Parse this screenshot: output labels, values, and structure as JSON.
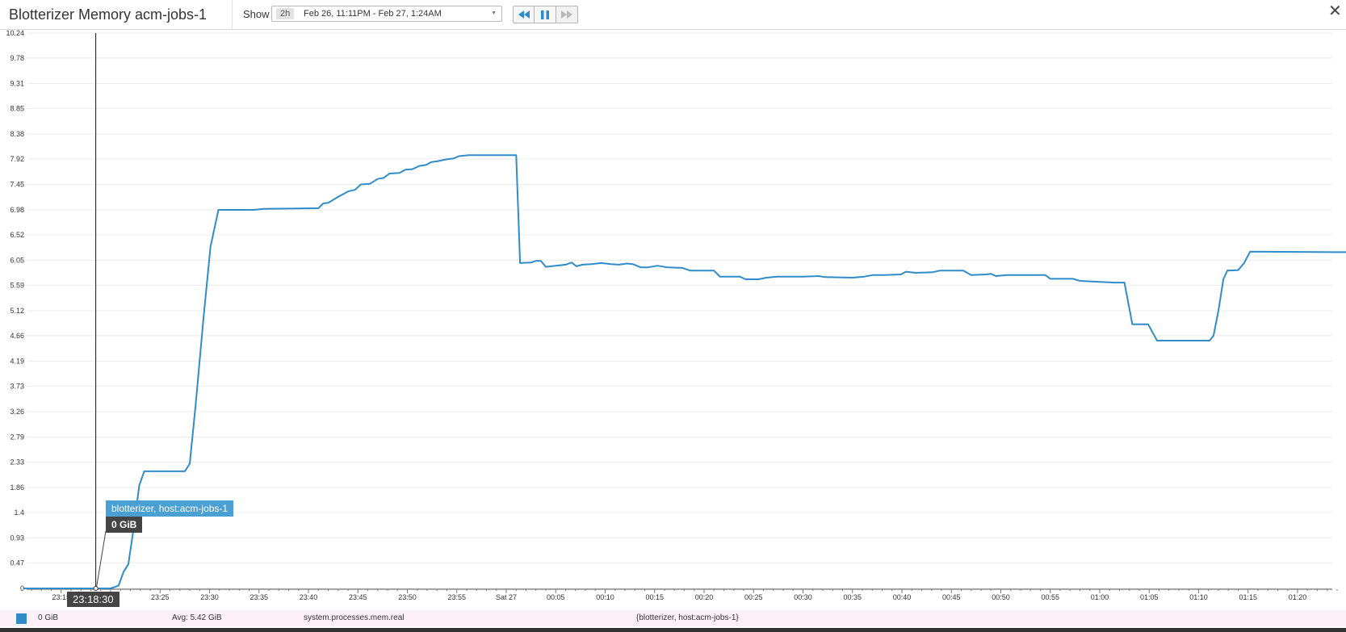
{
  "header": {
    "title": "Blotterizer Memory acm-jobs-1",
    "show_label": "Show",
    "range_pill": "2h",
    "range_text": "Feb 26, 11:11PM - Feb 27, 1:24AM"
  },
  "tooltip": {
    "series": "blotterizer, host:acm-jobs-1",
    "value": "0 GiB",
    "time": "23:18:30"
  },
  "legend": {
    "value": "0 GiB",
    "avg": "Avg: 5.42 GiB",
    "metric": "system.processes.mem.real",
    "scope": "{blotterizer, host:acm-jobs-1}"
  },
  "colors": {
    "series": "#2f8cc9",
    "tooltip_head": "#4a9fd3"
  },
  "icons": [
    "rewind-icon",
    "pause-icon",
    "fast-forward-icon",
    "close-icon"
  ],
  "chart_data": {
    "type": "line",
    "title": "",
    "xlabel": "",
    "ylabel": "",
    "ylim": [
      0,
      10.24
    ],
    "yticks": [
      "0",
      "0.47",
      "0.93",
      "1.4",
      "1.86",
      "2.33",
      "2.79",
      "3.26",
      "3.73",
      "4.19",
      "4.66",
      "5.12",
      "5.59",
      "6.05",
      "6.52",
      "6.98",
      "7.45",
      "7.92",
      "8.38",
      "8.85",
      "9.31",
      "9.78",
      "10.24"
    ],
    "xlim_minutes": [
      -49,
      85
    ],
    "xticks": [
      {
        "m": -45,
        "label": "23:15"
      },
      {
        "m": -35,
        "label": "23:25"
      },
      {
        "m": -30,
        "label": "23:30"
      },
      {
        "m": -25,
        "label": "23:35"
      },
      {
        "m": -20,
        "label": "23:40"
      },
      {
        "m": -15,
        "label": "23:45"
      },
      {
        "m": -10,
        "label": "23:50"
      },
      {
        "m": -5,
        "label": "23:55"
      },
      {
        "m": 0,
        "label": "Sat 27"
      },
      {
        "m": 5,
        "label": "00:05"
      },
      {
        "m": 10,
        "label": "00:10"
      },
      {
        "m": 15,
        "label": "00:15"
      },
      {
        "m": 20,
        "label": "00:20"
      },
      {
        "m": 25,
        "label": "00:25"
      },
      {
        "m": 30,
        "label": "00:30"
      },
      {
        "m": 35,
        "label": "00:35"
      },
      {
        "m": 40,
        "label": "00:40"
      },
      {
        "m": 45,
        "label": "00:45"
      },
      {
        "m": 50,
        "label": "00:50"
      },
      {
        "m": 55,
        "label": "00:55"
      },
      {
        "m": 60,
        "label": "01:00"
      },
      {
        "m": 65,
        "label": "01:05"
      },
      {
        "m": 70,
        "label": "01:10"
      },
      {
        "m": 75,
        "label": "01:15"
      },
      {
        "m": 80,
        "label": "01:20"
      }
    ],
    "cursor_minute": -41.5,
    "series": [
      {
        "name": "blotterizer, host:acm-jobs-1",
        "points": [
          [
            -48.8,
            0
          ],
          [
            -41.5,
            0
          ],
          [
            -40,
            0
          ],
          [
            -39.2,
            0.05
          ],
          [
            -38.7,
            0.3
          ],
          [
            -38.2,
            0.45
          ],
          [
            -37.6,
            1.2
          ],
          [
            -37.1,
            1.9
          ],
          [
            -36.6,
            2.16
          ],
          [
            -32.5,
            2.16
          ],
          [
            -32,
            2.3
          ],
          [
            -31.4,
            3.4
          ],
          [
            -30.6,
            5.0
          ],
          [
            -29.9,
            6.3
          ],
          [
            -29.1,
            6.98
          ],
          [
            -25.5,
            6.98
          ],
          [
            -24.5,
            7.0
          ],
          [
            -19,
            7.01
          ],
          [
            -18.5,
            7.1
          ],
          [
            -18,
            7.11
          ],
          [
            -17,
            7.22
          ],
          [
            -16,
            7.32
          ],
          [
            -15.3,
            7.35
          ],
          [
            -14.7,
            7.45
          ],
          [
            -13.8,
            7.46
          ],
          [
            -13,
            7.55
          ],
          [
            -12.4,
            7.57
          ],
          [
            -11.8,
            7.65
          ],
          [
            -10.8,
            7.66
          ],
          [
            -10.2,
            7.72
          ],
          [
            -9.5,
            7.73
          ],
          [
            -8.8,
            7.79
          ],
          [
            -8.1,
            7.81
          ],
          [
            -7.6,
            7.86
          ],
          [
            -6.9,
            7.88
          ],
          [
            -6.1,
            7.91
          ],
          [
            -5.3,
            7.93
          ],
          [
            -4.8,
            7.97
          ],
          [
            -3.8,
            7.99
          ],
          [
            1,
            7.99
          ],
          [
            1.4,
            6.0
          ],
          [
            2.5,
            6.01
          ],
          [
            3,
            6.04
          ],
          [
            3.5,
            6.04
          ],
          [
            4,
            5.93
          ],
          [
            5,
            5.95
          ],
          [
            6,
            5.97
          ],
          [
            6.6,
            6.01
          ],
          [
            7.1,
            5.94
          ],
          [
            7.7,
            5.97
          ],
          [
            8.6,
            5.98
          ],
          [
            9.6,
            6.0
          ],
          [
            10.6,
            5.98
          ],
          [
            11.4,
            5.97
          ],
          [
            12.2,
            5.99
          ],
          [
            12.8,
            5.98
          ],
          [
            13.6,
            5.92
          ],
          [
            14.3,
            5.92
          ],
          [
            15.3,
            5.95
          ],
          [
            16.3,
            5.92
          ],
          [
            17.8,
            5.91
          ],
          [
            18.6,
            5.86
          ],
          [
            21,
            5.86
          ],
          [
            21.6,
            5.75
          ],
          [
            23.6,
            5.75
          ],
          [
            24.2,
            5.7
          ],
          [
            25.5,
            5.7
          ],
          [
            26.3,
            5.73
          ],
          [
            27.4,
            5.75
          ],
          [
            30,
            5.75
          ],
          [
            31.6,
            5.76
          ],
          [
            32.2,
            5.74
          ],
          [
            35,
            5.73
          ],
          [
            36.2,
            5.75
          ],
          [
            37.1,
            5.78
          ],
          [
            38.2,
            5.78
          ],
          [
            39.9,
            5.79
          ],
          [
            40.4,
            5.84
          ],
          [
            41.4,
            5.82
          ],
          [
            43.1,
            5.83
          ],
          [
            43.8,
            5.86
          ],
          [
            46.2,
            5.86
          ],
          [
            47,
            5.78
          ],
          [
            48.5,
            5.79
          ],
          [
            49,
            5.8
          ],
          [
            49.5,
            5.76
          ],
          [
            50.6,
            5.78
          ],
          [
            54.5,
            5.78
          ],
          [
            55,
            5.71
          ],
          [
            57.3,
            5.71
          ],
          [
            58,
            5.67
          ],
          [
            61.5,
            5.64
          ],
          [
            62.5,
            5.64
          ],
          [
            63.3,
            4.87
          ],
          [
            64.9,
            4.87
          ],
          [
            65.8,
            4.57
          ],
          [
            71.1,
            4.57
          ],
          [
            71.5,
            4.66
          ],
          [
            72,
            5.12
          ],
          [
            72.5,
            5.7
          ],
          [
            72.9,
            5.86
          ],
          [
            74,
            5.87
          ],
          [
            74.6,
            6.0
          ],
          [
            75.2,
            6.21
          ],
          [
            84.9,
            6.2
          ]
        ]
      }
    ]
  }
}
